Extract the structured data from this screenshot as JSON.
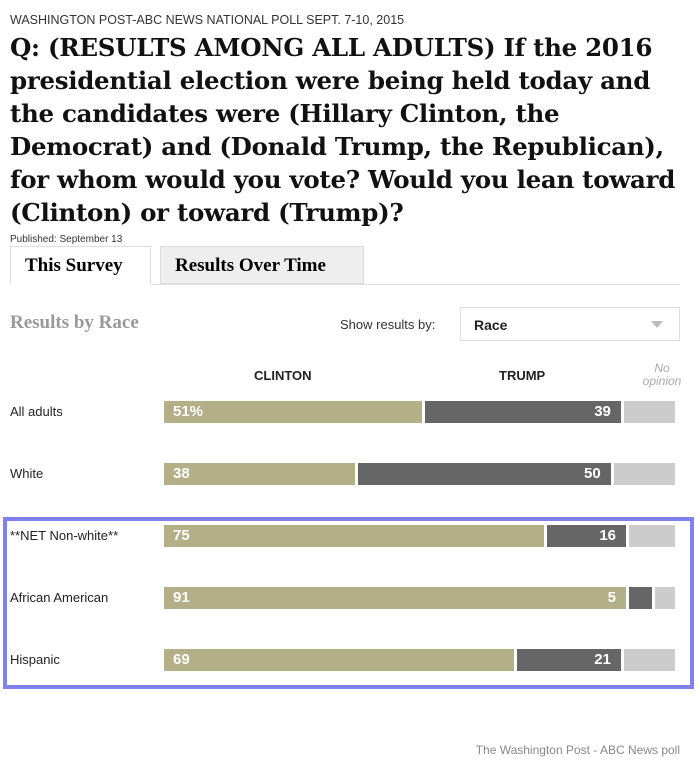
{
  "kicker": "WASHINGTON POST-ABC NEWS NATIONAL POLL SEPT. 7-10, 2015",
  "question": "Q: (RESULTS AMONG ALL ADULTS) If the 2016 presidential election were being held today and the candidates were (Hillary Clinton, the Democrat) and (Donald Trump, the Republican), for whom would you vote? Would you lean toward (Clinton) or toward (Trump)?",
  "published": "Published: September 13",
  "tabs": [
    {
      "label": "This Survey",
      "active": true
    },
    {
      "label": "Results Over Time",
      "active": false
    }
  ],
  "section_title": "Results by Race",
  "show_by_label": "Show results by:",
  "select_value": "Race",
  "footer": "The Washington Post - ABC News poll",
  "chart_data": {
    "type": "bar",
    "stacked": true,
    "orientation": "horizontal",
    "categories": [
      "All adults",
      "White",
      "**NET Non-white**",
      "African American",
      "Hispanic"
    ],
    "series": [
      {
        "name": "CLINTON",
        "color": "#b3af86",
        "values": [
          51,
          38,
          75,
          91,
          69
        ],
        "labels": [
          "51%",
          "38",
          "75",
          "91",
          "69"
        ]
      },
      {
        "name": "TRUMP",
        "color": "#666666",
        "values": [
          39,
          50,
          16,
          5,
          21
        ],
        "labels": [
          "39",
          "50",
          "16",
          "5",
          "21"
        ]
      },
      {
        "name": "No opinion",
        "color": "#cccccc",
        "values": [
          10,
          12,
          9,
          4,
          10
        ]
      }
    ],
    "highlighted_categories": [
      "**NET Non-white**",
      "African American",
      "Hispanic"
    ],
    "highlight_color": "#8080f0",
    "xlim": [
      0,
      100
    ]
  }
}
